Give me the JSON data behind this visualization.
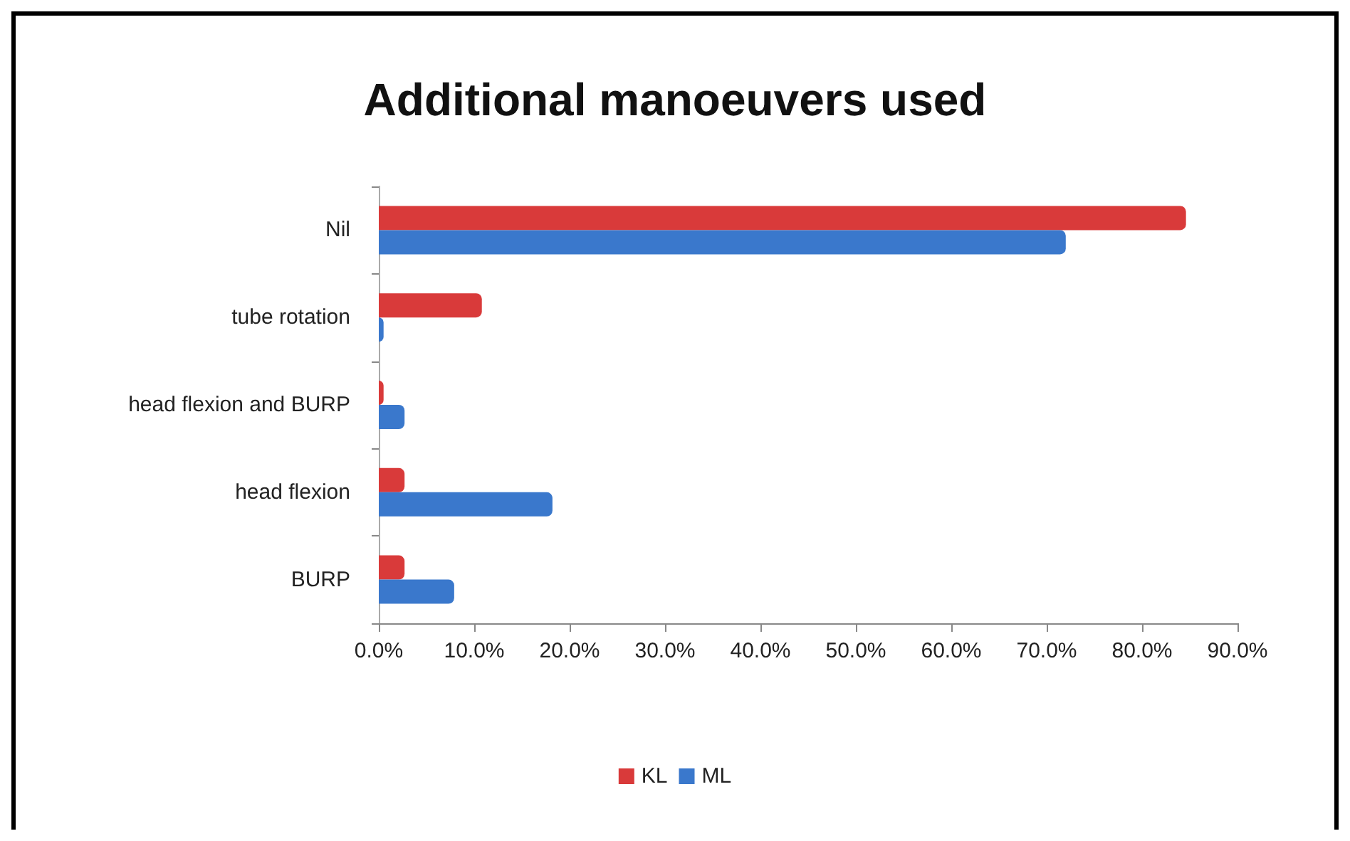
{
  "chart_data": {
    "type": "bar",
    "orientation": "horizontal",
    "title": "Additional manoeuvers used",
    "categories": [
      "Nil",
      "tube rotation",
      "head flexion and BURP",
      "head flexion",
      "BURP"
    ],
    "series": [
      {
        "name": "KL",
        "color": "#d93a3a",
        "values": [
          84.6,
          10.8,
          0.5,
          2.7,
          2.7
        ]
      },
      {
        "name": "ML",
        "color": "#3a78cc",
        "values": [
          72.0,
          0.5,
          2.7,
          18.2,
          7.9
        ]
      }
    ],
    "xlim": [
      0,
      90
    ],
    "xticks": [
      {
        "value": 0,
        "label": "0.0%"
      },
      {
        "value": 10,
        "label": "10.0%"
      },
      {
        "value": 20,
        "label": "20.0%"
      },
      {
        "value": 30,
        "label": "30.0%"
      },
      {
        "value": 40,
        "label": "40.0%"
      },
      {
        "value": 50,
        "label": "50.0%"
      },
      {
        "value": 60,
        "label": "60.0%"
      },
      {
        "value": 70,
        "label": "70.0%"
      },
      {
        "value": 80,
        "label": "80.0%"
      },
      {
        "value": 90,
        "label": "90.0%"
      }
    ],
    "grid": false,
    "legend": "bottom"
  }
}
